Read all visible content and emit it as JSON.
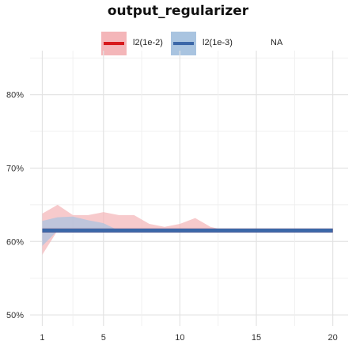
{
  "chart_data": {
    "type": "line",
    "title": "output_regularizer",
    "xlabel": "",
    "ylabel": "",
    "xlim": [
      0.2,
      21.0
    ],
    "ylim": [
      48.5,
      86.0
    ],
    "x_ticks": [
      1,
      5,
      10,
      15,
      20
    ],
    "y_ticks": [
      50,
      60,
      70,
      80
    ],
    "y_tick_labels": [
      "50%",
      "60%",
      "70%",
      "80%"
    ],
    "grid": true,
    "legend_position": "top",
    "series": [
      {
        "name": "l2(1e-2)",
        "color": "#d7191c",
        "band_color": "#f4b6b9",
        "x": [
          1,
          20
        ],
        "values": [
          61.5,
          61.5
        ],
        "band_x": [
          1,
          2,
          3,
          4,
          5,
          6,
          7,
          8,
          9,
          10,
          11,
          12,
          13,
          14,
          15,
          16,
          17,
          18,
          19,
          20
        ],
        "band_upper": [
          63.8,
          65.0,
          63.6,
          63.6,
          64.0,
          63.6,
          63.6,
          62.4,
          62.0,
          62.4,
          63.2,
          62.0,
          61.5,
          61.5,
          61.5,
          61.5,
          61.5,
          61.5,
          61.5,
          61.5
        ],
        "band_lower": [
          58.2,
          61.5,
          61.5,
          61.5,
          61.5,
          61.5,
          61.5,
          61.5,
          61.5,
          61.5,
          61.5,
          61.5,
          61.5,
          61.5,
          61.5,
          61.5,
          61.5,
          61.5,
          61.5,
          61.5
        ]
      },
      {
        "name": "l2(1e-3)",
        "color": "#3b67a8",
        "band_color": "#a9c4e0",
        "x": [
          1,
          20
        ],
        "values": [
          61.5,
          61.5
        ],
        "band_x": [
          1,
          2,
          3,
          4,
          5,
          6,
          7,
          8,
          9,
          10,
          11,
          12,
          13,
          14,
          15,
          16,
          17,
          18,
          19,
          20
        ],
        "band_upper": [
          62.8,
          63.3,
          63.4,
          62.9,
          62.5,
          61.5,
          61.5,
          61.5,
          61.5,
          61.5,
          61.5,
          61.5,
          61.5,
          61.5,
          61.5,
          61.5,
          61.5,
          61.5,
          61.5,
          61.5
        ],
        "band_lower": [
          59.4,
          61.5,
          61.5,
          61.5,
          61.5,
          61.5,
          61.5,
          61.5,
          61.5,
          61.5,
          61.5,
          61.5,
          61.5,
          61.5,
          61.5,
          61.5,
          61.5,
          61.5,
          61.5,
          61.5
        ]
      },
      {
        "name": "NA",
        "color": "#888888",
        "band_color": "#ffffff",
        "x": [],
        "values": []
      }
    ]
  }
}
